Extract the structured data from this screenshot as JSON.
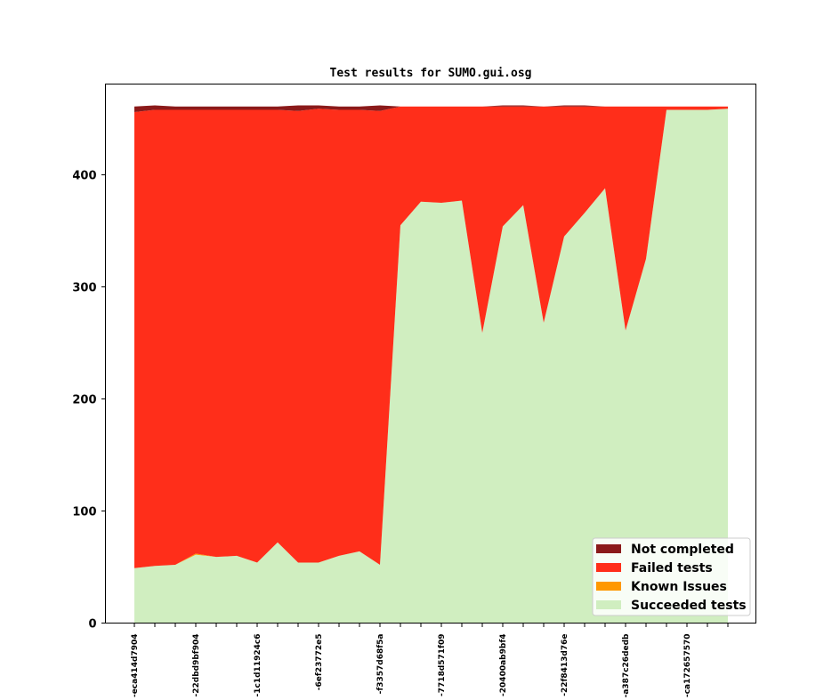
{
  "chart_data": {
    "type": "area",
    "stacked": true,
    "title": "Test results for SUMO.gui.osg",
    "xlabel": "",
    "ylabel": "",
    "ylim": [
      0,
      481
    ],
    "yticks": [
      0,
      100,
      200,
      300,
      400
    ],
    "x_tick_labels": [
      "-eca414d7904",
      "-22dbd9bf904",
      "-1c1d11924c6",
      "-6ef23772e5",
      "-f3357d68f5a",
      "-7718d571f09",
      "-20400ab9bf4",
      "-22f8413d76e",
      "-a387c26dedb",
      "-ca172657570"
    ],
    "x_tick_every": 3,
    "legend_position": "lower right",
    "grid": false,
    "series": [
      {
        "name": "Succeeded tests",
        "color": "#d0eec0",
        "values": [
          49,
          51,
          52,
          61,
          59,
          60,
          54,
          72,
          54,
          54,
          60,
          64,
          52,
          355,
          376,
          375,
          377,
          259,
          354,
          373,
          268,
          345,
          366,
          388,
          261,
          325,
          458,
          458,
          458,
          459
        ]
      },
      {
        "name": "Known Issues",
        "color": "#ff9800",
        "values": [
          0,
          0,
          0,
          1,
          0,
          0,
          0,
          0,
          0,
          0,
          0,
          0,
          0,
          0,
          0,
          0,
          0,
          0,
          0,
          0,
          0,
          0,
          0,
          0,
          0,
          0,
          0,
          0,
          0,
          0
        ]
      },
      {
        "name": "Failed tests",
        "color": "#ff2e1a",
        "values": [
          407,
          407,
          406,
          396,
          399,
          398,
          404,
          386,
          403,
          405,
          398,
          394,
          405,
          106,
          85,
          86,
          84,
          202,
          107,
          88,
          193,
          116,
          95,
          73,
          200,
          136,
          3,
          3,
          3,
          2
        ]
      },
      {
        "name": "Not completed",
        "color": "#8b1a1a",
        "values": [
          5,
          4,
          3,
          3,
          3,
          3,
          3,
          3,
          5,
          3,
          3,
          3,
          5,
          0,
          0,
          0,
          0,
          0,
          1,
          1,
          0,
          1,
          1,
          0,
          0,
          0,
          0,
          0,
          0,
          0
        ]
      }
    ]
  }
}
